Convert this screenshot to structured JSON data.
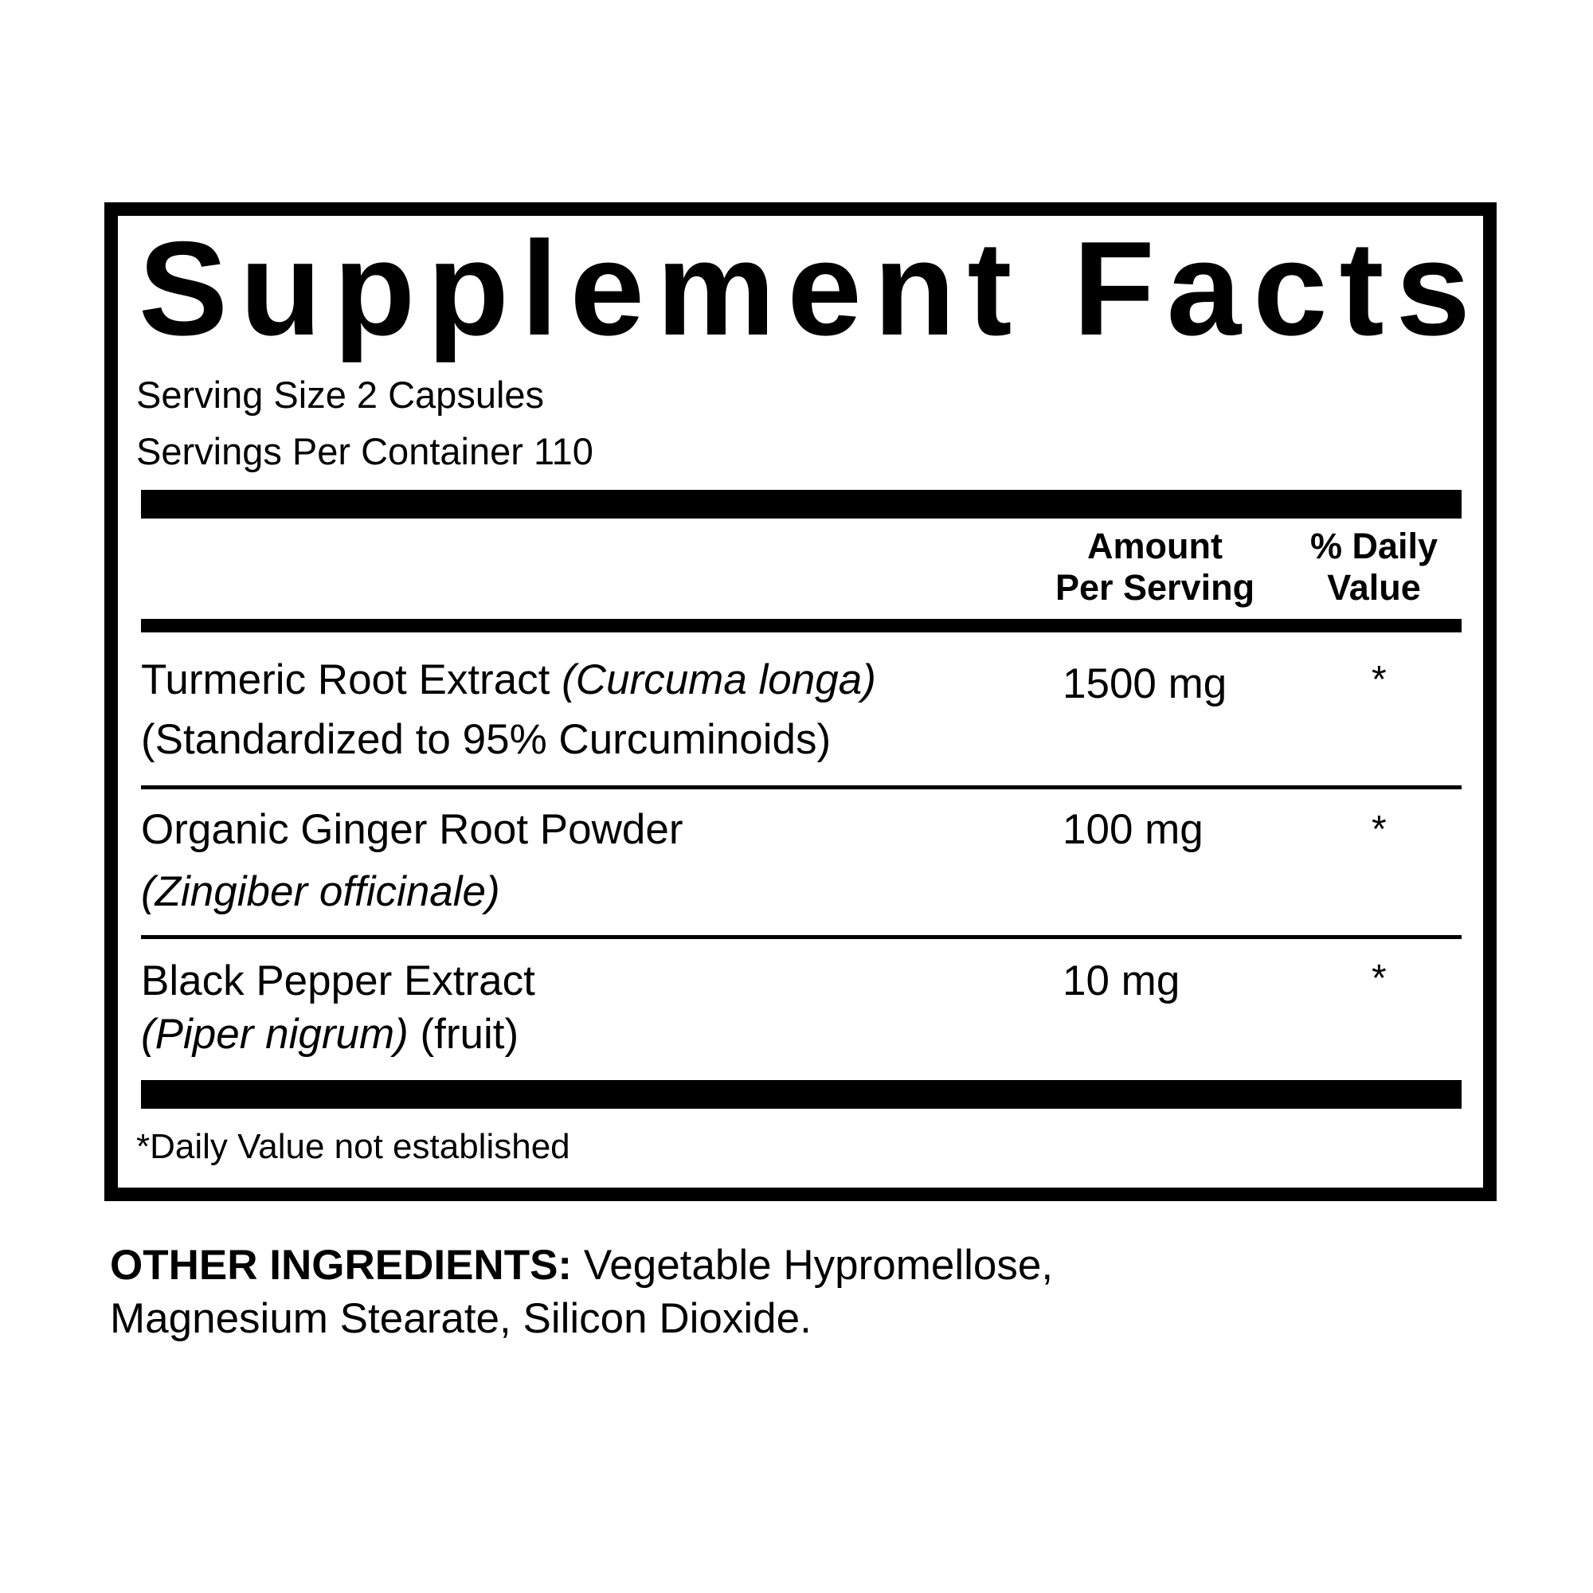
{
  "title": "Supplement Facts",
  "serving_size": "Serving Size 2 Capsules",
  "servings_per_container": "Servings Per Container 110",
  "header": {
    "amount_line1": "Amount",
    "amount_line2": "Per Serving",
    "dv_line1": "% Daily",
    "dv_line2": "Value"
  },
  "ingredients": [
    {
      "name": "Turmeric Root Extract",
      "latin": "(Curcuma longa)",
      "detail": "(Standardized to 95% Curcuminoids)",
      "amount": "1500 mg",
      "dv": "*"
    },
    {
      "name": "Organic Ginger Root Powder",
      "latin": "(Zingiber officinale)",
      "amount": "100 mg",
      "dv": "*"
    },
    {
      "name": "Black Pepper Extract",
      "latin": "(Piper nigrum)",
      "detail": "(fruit)",
      "amount": "10 mg",
      "dv": "*"
    }
  ],
  "footnote": "*Daily Value not established",
  "other_ingredients": {
    "label": "OTHER INGREDIENTS:",
    "line1": "Vegetable Hypromellose,",
    "line2": "Magnesium Stearate, Silicon Dioxide."
  }
}
